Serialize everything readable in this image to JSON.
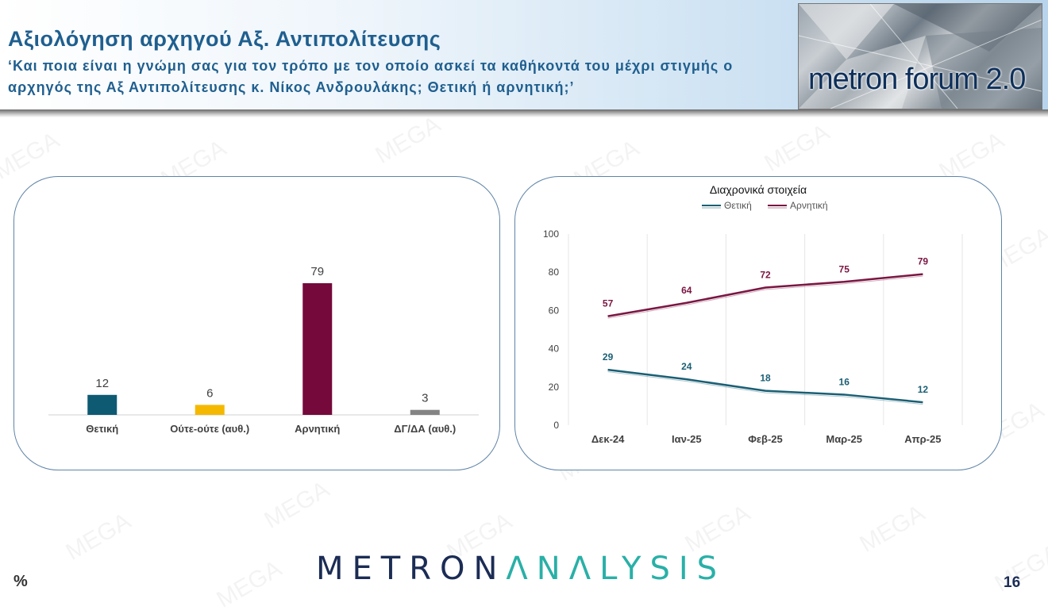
{
  "header": {
    "title": "Αξιολόγηση αρχηγού Αξ. Αντιπολίτευσης",
    "subtitle": "‘Και ποια είναι η γνώμη σας για τον τρόπο με τον οποίο ασκεί τα καθήκοντά του μέχρι στιγμής ο αρχηγός της Αξ Αντιπολίτευσης κ. Νίκος Ανδρουλάκης; Θετική ή αρνητική;’",
    "forum_logo": "metron forum 2.0"
  },
  "watermark_text": "MEGA",
  "chart_data": [
    {
      "type": "bar",
      "categories": [
        "Θετική",
        "Ούτε-ούτε (αυθ.)",
        "Αρνητική",
        "ΔΓ/ΔΑ (αυθ.)"
      ],
      "values": [
        12,
        6,
        79,
        3
      ],
      "colors": [
        "#0e5a73",
        "#f5b800",
        "#75093b",
        "#848484"
      ],
      "title": "",
      "xlabel": "",
      "ylabel": "",
      "ylim": [
        0,
        100
      ],
      "grid": false,
      "legend": "none"
    },
    {
      "type": "line",
      "title": "Διαχρονικά στοιχεία",
      "categories": [
        "Δεκ-24",
        "Ιαν-25",
        "Φεβ-25",
        "Μαρ-25",
        "Απρ-25"
      ],
      "series": [
        {
          "name": "Θετική",
          "values": [
            29,
            24,
            18,
            16,
            12
          ],
          "color": "#1a5f74"
        },
        {
          "name": "Αρνητική",
          "values": [
            57,
            64,
            72,
            75,
            79
          ],
          "color": "#7a1642"
        }
      ],
      "yticks": [
        0,
        20,
        40,
        60,
        80,
        100
      ],
      "ylim": [
        0,
        100
      ],
      "xlabel": "",
      "ylabel": "",
      "grid": "vertical",
      "legend": "top"
    }
  ],
  "footer": {
    "percent_symbol": "%",
    "logo_part1": "METRON",
    "logo_part2": "ΛNΛLYSIS",
    "page_number": "16"
  }
}
